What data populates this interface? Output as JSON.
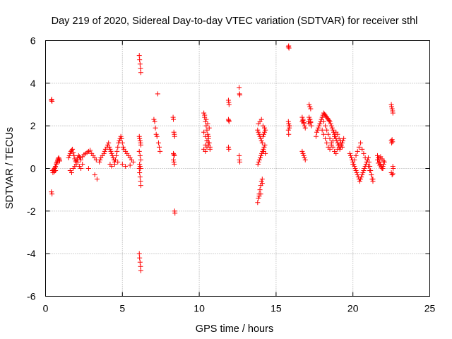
{
  "chart_data": {
    "type": "scatter",
    "title": "Day 219 of 2020, Sidereal Day-to-day VTEC variation (SDTVAR) for receiver sthl",
    "xlabel": "GPS time / hours",
    "ylabel": "SDTVAR / TECUs",
    "xlim": [
      0,
      25
    ],
    "ylim": [
      -6,
      6
    ],
    "x_ticks": [
      0,
      5,
      10,
      15,
      20,
      25
    ],
    "y_ticks": [
      -6,
      -4,
      -2,
      0,
      2,
      4,
      6
    ],
    "grid": true,
    "marker": "+",
    "color": "#ff0000",
    "series": [
      {
        "name": "SDTVAR",
        "x": [
          0.38,
          0.4,
          0.42,
          0.38,
          0.42,
          0.45,
          0.48,
          0.52,
          0.55,
          0.58,
          0.62,
          0.65,
          0.7,
          0.75,
          0.78,
          0.8,
          0.82,
          0.85,
          0.88,
          0.9,
          0.92,
          0.6,
          0.65,
          0.72,
          1.5,
          1.55,
          1.6,
          1.65,
          1.7,
          1.75,
          1.8,
          1.85,
          1.9,
          1.95,
          2.0,
          2.05,
          2.1,
          2.15,
          2.2,
          2.25,
          2.3,
          2.4,
          2.5,
          2.6,
          2.7,
          2.8,
          2.9,
          3.0,
          3.1,
          3.2,
          3.3,
          1.6,
          1.7,
          1.8,
          1.9,
          2.0,
          2.1,
          2.2,
          2.3,
          2.4,
          2.8,
          3.2,
          3.35,
          3.5,
          3.55,
          3.6,
          3.7,
          3.8,
          3.85,
          3.9,
          4.0,
          4.05,
          4.1,
          4.15,
          4.2,
          4.25,
          4.3,
          4.35,
          4.4,
          4.45,
          4.5,
          4.55,
          4.6,
          4.65,
          4.7,
          4.75,
          4.8,
          4.85,
          4.9,
          4.95,
          5.0,
          5.05,
          5.1,
          5.2,
          5.3,
          5.4,
          5.5,
          5.6,
          5.7,
          4.2,
          4.3,
          4.5,
          4.7,
          5.0,
          5.2,
          5.5,
          6.1,
          6.12,
          6.15,
          6.18,
          6.2,
          6.1,
          6.12,
          6.15,
          6.18,
          6.2,
          6.1,
          6.12,
          6.15,
          6.18,
          6.2,
          6.1,
          6.15,
          6.2,
          6.1,
          6.12,
          6.15,
          6.18,
          6.2,
          6.12,
          6.15,
          6.18,
          7.05,
          7.1,
          7.15,
          7.2,
          7.25,
          7.3,
          7.35,
          7.4,
          7.45,
          8.3,
          8.32,
          8.35,
          8.38,
          8.4,
          8.32,
          8.35,
          8.38,
          8.4,
          8.42,
          8.32,
          8.35,
          8.38,
          10.3,
          10.35,
          10.4,
          10.45,
          10.5,
          10.55,
          10.6,
          10.65,
          10.7,
          10.3,
          10.4,
          10.5,
          10.6,
          10.35,
          10.45,
          10.55,
          10.65,
          10.3,
          10.4,
          10.5,
          10.6,
          10.7,
          10.4,
          10.5,
          10.6,
          11.9,
          11.92,
          11.94,
          11.9,
          11.92,
          11.94,
          11.9,
          11.92,
          12.6,
          12.62,
          12.64,
          12.6,
          12.62,
          12.64,
          13.8,
          13.85,
          13.9,
          13.95,
          14.0,
          14.05,
          14.1,
          14.15,
          14.2,
          14.25,
          14.3,
          13.8,
          13.85,
          13.9,
          13.95,
          14.0,
          14.05,
          14.1,
          13.82,
          13.87,
          13.92,
          13.97,
          14.02,
          14.07,
          14.12,
          14.17,
          14.22,
          14.27,
          13.85,
          13.95,
          14.05,
          14.15,
          14.25,
          13.9,
          14.0,
          14.1,
          14.2,
          14.3,
          15.8,
          15.82,
          15.84,
          15.8,
          15.82,
          15.84,
          15.8,
          15.82,
          15.86,
          15.88,
          16.7,
          16.75,
          16.8,
          16.85,
          16.9,
          16.7,
          16.75,
          16.8,
          16.85,
          16.9,
          16.7,
          16.75,
          16.8,
          17.1,
          17.15,
          17.2,
          17.25,
          17.3,
          17.15,
          17.2,
          17.25,
          17.15,
          17.2,
          17.25,
          17.6,
          17.65,
          17.7,
          17.75,
          17.8,
          17.85,
          17.9,
          17.95,
          18.0,
          18.05,
          18.1,
          18.15,
          18.2,
          18.25,
          18.3,
          18.35,
          18.4,
          18.45,
          18.5,
          18.55,
          18.6,
          18.65,
          18.7,
          18.75,
          18.8,
          18.85,
          18.9,
          18.95,
          19.0,
          19.05,
          19.1,
          19.15,
          19.2,
          19.25,
          19.3,
          19.35,
          19.4,
          18.0,
          18.1,
          18.2,
          18.3,
          18.4,
          18.5,
          18.6,
          18.7,
          18.8,
          18.9,
          19.0,
          19.1,
          19.2,
          19.3,
          18.1,
          18.2,
          18.3,
          18.4,
          18.5,
          18.6,
          18.7,
          18.8,
          18.9,
          19.0,
          19.1,
          19.2,
          19.8,
          19.85,
          19.9,
          19.95,
          20.0,
          20.05,
          20.1,
          20.15,
          20.2,
          20.25,
          20.3,
          20.35,
          20.4,
          20.45,
          20.5,
          20.55,
          20.6,
          20.65,
          20.7,
          20.75,
          20.8,
          20.85,
          20.9,
          20.95,
          21.0,
          21.05,
          21.1,
          21.15,
          21.2,
          21.25,
          21.3,
          20.0,
          20.1,
          20.2,
          20.3,
          20.4,
          20.5,
          20.6,
          20.7,
          20.8,
          20.9,
          21.0,
          21.1,
          21.2,
          21.3,
          21.6,
          21.65,
          21.7,
          21.75,
          21.8,
          21.85,
          21.9,
          21.95,
          22.0,
          22.05,
          21.6,
          21.7,
          21.8,
          21.9,
          22.0,
          21.65,
          21.75,
          21.85,
          21.95,
          22.5,
          22.52,
          22.55,
          22.58,
          22.6,
          22.5,
          22.52,
          22.55,
          22.58,
          22.6,
          22.62,
          22.5,
          22.55,
          22.6
        ],
        "y": [
          3.2,
          3.25,
          3.15,
          -1.1,
          -1.2,
          -0.1,
          -0.2,
          -0.05,
          -0.1,
          -0.15,
          0.05,
          0.1,
          0.2,
          0.3,
          0.35,
          0.4,
          0.45,
          0.5,
          0.45,
          0.4,
          0.35,
          0.0,
          -0.1,
          0.25,
          0.5,
          0.6,
          0.7,
          0.8,
          0.85,
          0.9,
          0.75,
          0.6,
          0.45,
          0.35,
          0.3,
          0.4,
          0.5,
          0.6,
          0.55,
          0.5,
          0.4,
          0.55,
          0.65,
          0.7,
          0.75,
          0.8,
          0.85,
          0.7,
          0.6,
          0.5,
          0.4,
          -0.1,
          -0.2,
          0.0,
          0.1,
          0.2,
          0.3,
          0.1,
          0.0,
          0.2,
          0.0,
          -0.3,
          -0.5,
          0.3,
          0.4,
          0.5,
          0.6,
          0.7,
          0.8,
          0.9,
          1.0,
          1.1,
          1.2,
          1.0,
          0.9,
          0.8,
          0.7,
          0.6,
          0.5,
          0.4,
          0.3,
          0.4,
          0.6,
          0.8,
          1.0,
          1.2,
          1.3,
          1.4,
          1.5,
          1.4,
          1.2,
          1.0,
          0.9,
          0.8,
          0.7,
          0.6,
          0.5,
          0.4,
          0.3,
          0.2,
          0.1,
          0.2,
          0.3,
          0.2,
          0.1,
          0.15,
          5.3,
          5.1,
          4.9,
          4.7,
          4.5,
          -4.0,
          -4.2,
          -4.4,
          -4.6,
          -4.8,
          1.5,
          1.4,
          1.3,
          1.2,
          1.1,
          0.8,
          0.6,
          0.4,
          0.0,
          -0.2,
          -0.4,
          -0.6,
          -0.8,
          0.2,
          0.1,
          0.0,
          2.3,
          2.2,
          1.9,
          1.6,
          1.5,
          3.5,
          1.2,
          1.0,
          0.8,
          2.4,
          2.3,
          1.7,
          1.6,
          1.5,
          0.7,
          0.65,
          0.6,
          -2.0,
          -2.1,
          0.4,
          0.3,
          0.2,
          2.6,
          2.4,
          2.2,
          2.0,
          1.8,
          1.6,
          1.4,
          1.2,
          1.0,
          0.9,
          1.1,
          1.3,
          1.5,
          2.5,
          2.3,
          2.1,
          1.9,
          1.7,
          1.5,
          1.3,
          1.1,
          0.9,
          0.8,
          1.0,
          1.2,
          3.2,
          3.1,
          3.0,
          2.3,
          2.25,
          2.2,
          1.0,
          0.9,
          3.8,
          3.5,
          3.45,
          0.6,
          0.4,
          0.3,
          -1.6,
          -1.4,
          -1.2,
          -1.0,
          -0.8,
          -0.6,
          -0.5,
          1.5,
          1.6,
          1.7,
          1.8,
          1.8,
          1.7,
          1.6,
          1.5,
          1.4,
          1.3,
          1.2,
          0.2,
          0.3,
          0.4,
          0.5,
          0.6,
          0.7,
          0.8,
          0.9,
          1.0,
          1.1,
          2.1,
          2.2,
          2.3,
          2.0,
          1.9,
          -1.3,
          -1.2,
          -0.7,
          0.8,
          0.7,
          5.7,
          5.75,
          5.65,
          2.2,
          2.1,
          2.0,
          1.8,
          1.6,
          1.9,
          2.0,
          2.2,
          2.3,
          2.1,
          2.0,
          1.9,
          0.8,
          0.7,
          0.6,
          0.5,
          0.4,
          2.4,
          2.25,
          2.15,
          2.2,
          2.1,
          2.3,
          2.15,
          2.0,
          3.0,
          2.9,
          2.8,
          2.4,
          2.3,
          2.2,
          1.5,
          1.7,
          1.8,
          1.9,
          2.0,
          2.1,
          2.2,
          2.3,
          2.4,
          2.5,
          2.6,
          2.55,
          2.5,
          2.45,
          2.4,
          2.35,
          2.3,
          2.25,
          2.2,
          2.1,
          2.0,
          1.9,
          1.8,
          1.7,
          1.6,
          1.5,
          1.4,
          1.3,
          1.2,
          1.1,
          1.0,
          0.9,
          1.0,
          1.1,
          1.2,
          1.3,
          1.4,
          1.8,
          1.6,
          1.4,
          1.2,
          1.0,
          0.9,
          1.1,
          1.3,
          1.5,
          1.7,
          1.6,
          1.4,
          1.2,
          1.0,
          2.2,
          2.0,
          1.8,
          1.6,
          1.4,
          1.2,
          1.0,
          0.8,
          0.7,
          0.9,
          1.1,
          1.3,
          0.7,
          0.6,
          0.5,
          0.4,
          0.3,
          0.2,
          0.1,
          0.0,
          -0.1,
          -0.2,
          -0.3,
          -0.4,
          -0.5,
          -0.6,
          -0.5,
          -0.4,
          -0.3,
          -0.2,
          -0.1,
          0.0,
          0.1,
          0.2,
          0.3,
          0.4,
          0.5,
          0.3,
          0.1,
          -0.1,
          -0.3,
          -0.5,
          -0.6,
          0.2,
          0.4,
          0.6,
          0.8,
          1.0,
          1.2,
          0.9,
          0.7,
          0.5,
          0.3,
          0.1,
          -0.1,
          -0.3,
          -0.5,
          0.6,
          0.5,
          0.4,
          0.3,
          0.2,
          0.1,
          0.0,
          0.1,
          0.2,
          0.3,
          0.4,
          0.5,
          0.55,
          0.45,
          0.35,
          0.25,
          0.15,
          0.05,
          0.0,
          3.0,
          2.9,
          2.8,
          2.7,
          2.6,
          1.3,
          1.2,
          1.35,
          1.25,
          0.1,
          0.0,
          -0.2,
          -0.3,
          -0.25
        ]
      }
    ]
  }
}
